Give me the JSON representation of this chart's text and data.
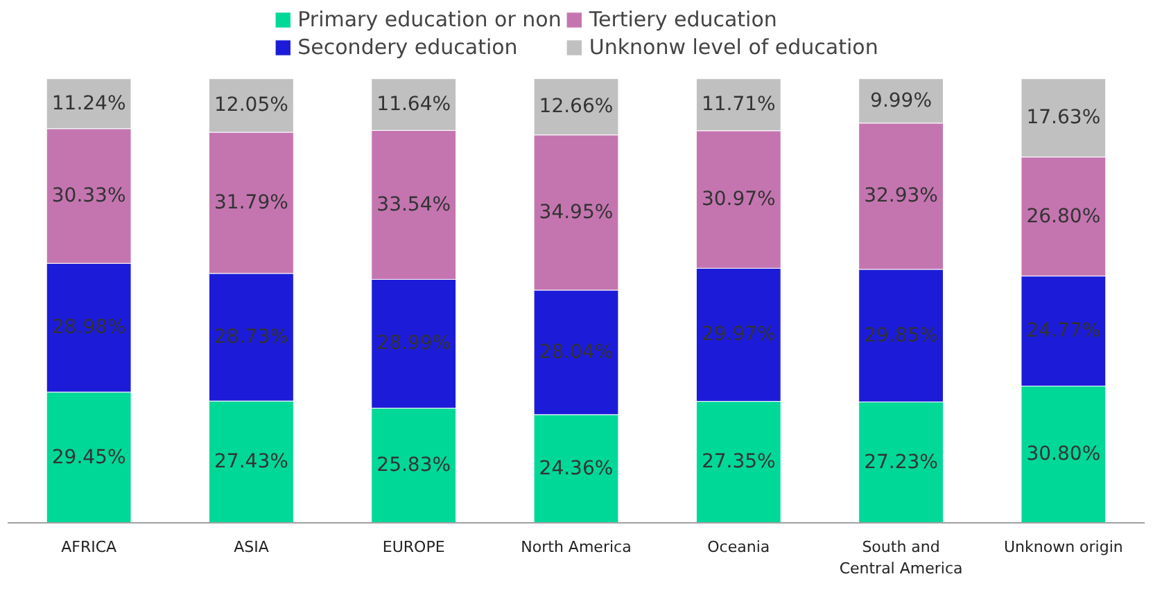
{
  "chart_data": {
    "type": "bar",
    "stacked": true,
    "legend": "top",
    "grid": false,
    "categories": [
      "AFRICA",
      "ASIA",
      "EUROPE",
      "North America",
      "Oceania",
      "South and Central America",
      "Unknown origin"
    ],
    "series": [
      {
        "name": "Primary education or non",
        "color": "#00d898",
        "values": [
          29.45,
          27.43,
          25.83,
          24.36,
          27.35,
          27.23,
          30.8
        ],
        "value_labels": [
          "29.45%",
          "27.43%",
          "25.83%",
          "24.36%",
          "27.35%",
          "27.23%",
          "30.80%"
        ]
      },
      {
        "name": "Secondery education",
        "color": "#1c1cd8",
        "values": [
          28.98,
          28.73,
          28.99,
          28.04,
          29.97,
          29.85,
          24.77
        ],
        "value_labels": [
          "28.98%",
          "28.73%",
          "28.99%",
          "28.04%",
          "29.97%",
          "29.85%",
          "24.77%"
        ]
      },
      {
        "name": "Tertiery education",
        "color": "#c475b0",
        "values": [
          30.33,
          31.79,
          33.54,
          34.95,
          30.97,
          32.93,
          26.8
        ],
        "value_labels": [
          "30.33%",
          "31.79%",
          "33.54%",
          "34.95%",
          "30.97%",
          "32.93%",
          "26.80%"
        ]
      },
      {
        "name": "Unknonw level of education",
        "color": "#c0c0c0",
        "values": [
          11.24,
          12.05,
          11.64,
          12.66,
          11.71,
          9.99,
          17.63
        ],
        "value_labels": [
          "11.24%",
          "12.05%",
          "11.64%",
          "12.66%",
          "11.71%",
          "9.99%",
          "17.63%"
        ]
      }
    ]
  }
}
